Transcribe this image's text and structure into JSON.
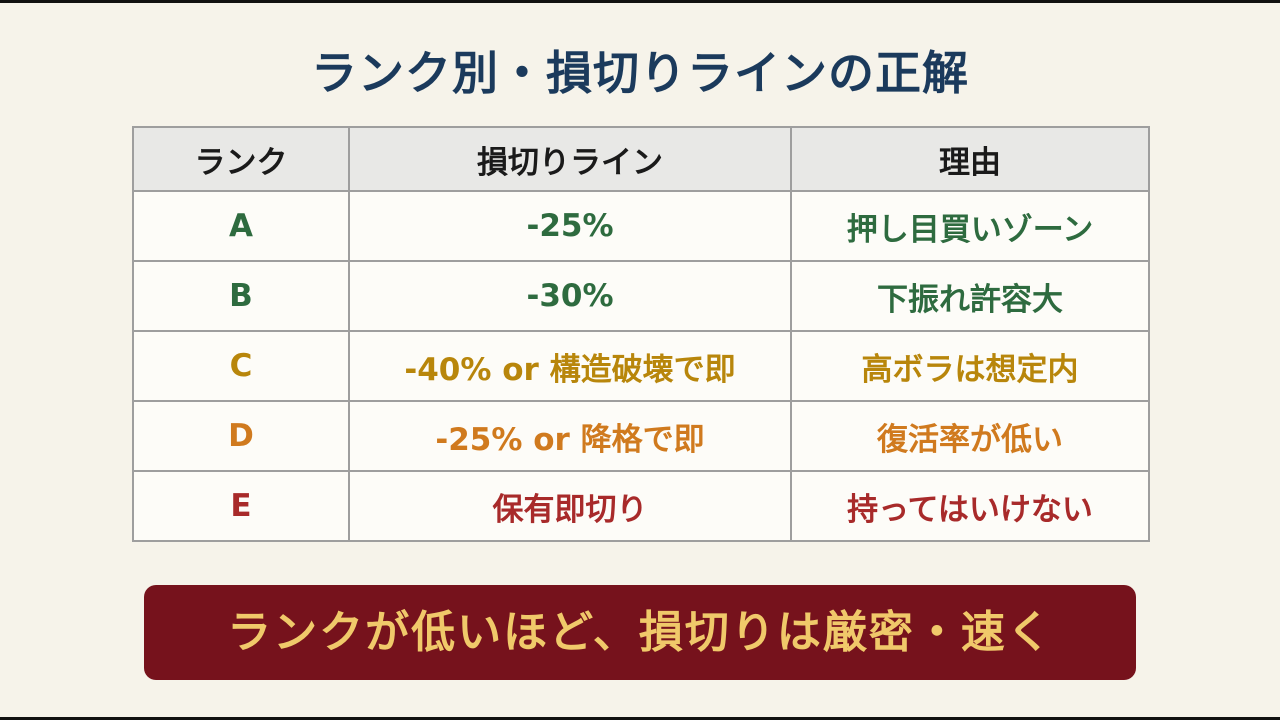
{
  "title": "ランク別・損切りラインの正解",
  "table": {
    "headers": [
      "ランク",
      "損切りライン",
      "理由"
    ],
    "rows": [
      {
        "rank": "A",
        "stop_loss": "-25%",
        "reason": "押し目買いゾーン",
        "color": "#2e6b3f"
      },
      {
        "rank": "B",
        "stop_loss": "-30%",
        "reason": "下振れ許容大",
        "color": "#2e6b3f"
      },
      {
        "rank": "C",
        "stop_loss": "-40% or 構造破壊で即",
        "reason": "高ボラは想定内",
        "color": "#b8860b"
      },
      {
        "rank": "D",
        "stop_loss": "-25% or 降格で即",
        "reason": "復活率が低い",
        "color": "#d07a1e"
      },
      {
        "rank": "E",
        "stop_loss": "保有即切り",
        "reason": "持ってはいけない",
        "color": "#a82a2a"
      }
    ]
  },
  "banner": "ランクが低いほど、損切りは厳密・速く",
  "colors": {
    "background": "#f6f3ea",
    "title": "#1b3a5c",
    "banner_bg": "#76121c",
    "banner_text": "#f0c96a",
    "header_bg": "#e8e8e6",
    "grid": "#9e9e9e"
  }
}
